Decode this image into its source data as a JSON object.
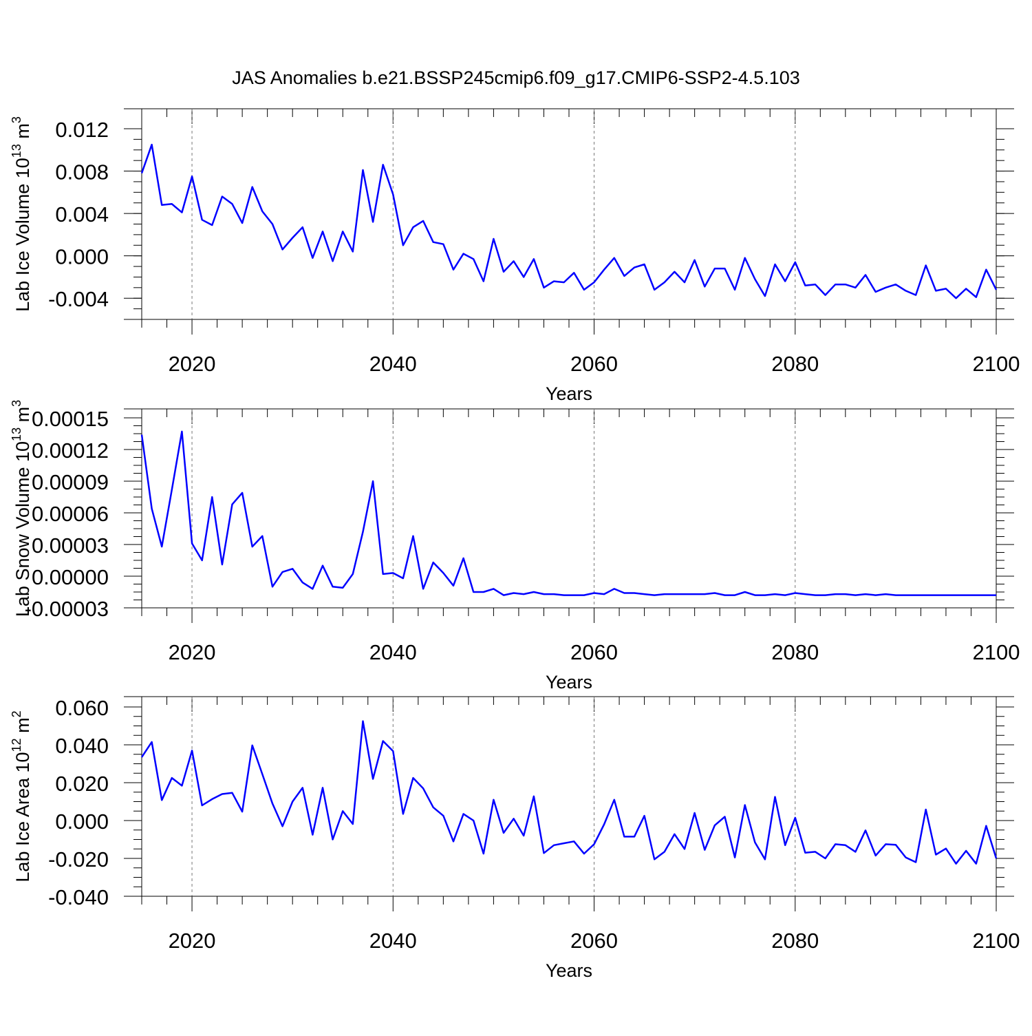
{
  "title": "JAS Anomalies b.e21.BSSP245cmip6.f09_g17.CMIP6-SSP2-4.5.103",
  "line_color": "#0000ff",
  "chart_data": [
    {
      "type": "line",
      "ylabel": "Lab Ice Volume 10",
      "ylabel_sup": "13",
      "ylabel_unit": " m",
      "ylabel_unit_sup": "3",
      "xlabel": "Years",
      "xlim": [
        2015,
        2100
      ],
      "ylim": [
        -0.006,
        0.012
      ],
      "yticks": [
        0.012,
        0.008,
        0.004,
        0.0,
        -0.004
      ],
      "yticklabels": [
        "0.012",
        "0.008",
        "0.004",
        "0.000",
        "-0.004"
      ],
      "xticks": [
        2020,
        2040,
        2060,
        2080,
        2100
      ],
      "xticklabels": [
        "2020",
        "2040",
        "2060",
        "2080",
        "2100"
      ],
      "x": [
        2015,
        2016,
        2017,
        2018,
        2019,
        2020,
        2021,
        2022,
        2023,
        2024,
        2025,
        2026,
        2027,
        2028,
        2029,
        2030,
        2031,
        2032,
        2033,
        2034,
        2035,
        2036,
        2037,
        2038,
        2039,
        2040,
        2041,
        2042,
        2043,
        2044,
        2045,
        2046,
        2047,
        2048,
        2049,
        2050,
        2051,
        2052,
        2053,
        2054,
        2055,
        2056,
        2057,
        2058,
        2059,
        2060,
        2061,
        2062,
        2063,
        2064,
        2065,
        2066,
        2067,
        2068,
        2069,
        2070,
        2071,
        2072,
        2073,
        2074,
        2075,
        2076,
        2077,
        2078,
        2079,
        2080,
        2081,
        2082,
        2083,
        2084,
        2085,
        2086,
        2087,
        2088,
        2089,
        2090,
        2091,
        2092,
        2093,
        2094,
        2095,
        2096,
        2097,
        2098,
        2099,
        2100
      ],
      "series": [
        {
          "values": [
            0.0078,
            0.0105,
            0.0048,
            0.0049,
            0.0041,
            0.0075,
            0.0034,
            0.0029,
            0.0056,
            0.0049,
            0.0031,
            0.0065,
            0.0042,
            0.003,
            0.0006,
            0.0017,
            0.0027,
            -0.0002,
            0.0023,
            -0.0005,
            0.0023,
            0.0004,
            0.0081,
            0.0032,
            0.0086,
            0.0058,
            0.001,
            0.0027,
            0.0033,
            0.0013,
            0.0011,
            -0.0013,
            0.0002,
            -0.0003,
            -0.0024,
            0.0016,
            -0.0015,
            -0.0005,
            -0.002,
            -0.0003,
            -0.003,
            -0.0024,
            -0.0025,
            -0.0016,
            -0.0032,
            -0.0025,
            -0.0013,
            -0.0002,
            -0.0019,
            -0.0011,
            -0.0008,
            -0.0032,
            -0.0025,
            -0.0015,
            -0.0025,
            -0.0004,
            -0.0029,
            -0.0012,
            -0.0012,
            -0.0032,
            -0.0002,
            -0.0022,
            -0.0038,
            -0.0008,
            -0.0024,
            -0.0006,
            -0.0028,
            -0.0027,
            -0.0037,
            -0.0027,
            -0.0027,
            -0.003,
            -0.0018,
            -0.0034,
            -0.003,
            -0.0027,
            -0.0033,
            -0.0037,
            -0.0009,
            -0.0033,
            -0.0031,
            -0.004,
            -0.0031,
            -0.0039,
            -0.0013,
            -0.0032
          ]
        }
      ]
    },
    {
      "type": "line",
      "ylabel": "Lab Snow Volume 10",
      "ylabel_sup": "13",
      "ylabel_unit": " m",
      "ylabel_unit_sup": "3",
      "xlabel": "Years",
      "xlim": [
        2015,
        2100
      ],
      "ylim": [
        -3e-05,
        0.00015
      ],
      "yticks": [
        0.00015,
        0.00012,
        9e-05,
        6e-05,
        3e-05,
        0.0,
        -3e-05
      ],
      "yticklabels": [
        "0.00015",
        "0.00012",
        "0.00009",
        "0.00006",
        "0.00003",
        "0.00000",
        "-0.00003"
      ],
      "xticks": [
        2020,
        2040,
        2060,
        2080,
        2100
      ],
      "xticklabels": [
        "2020",
        "2040",
        "2060",
        "2080",
        "2100"
      ],
      "x": [
        2015,
        2016,
        2017,
        2018,
        2019,
        2020,
        2021,
        2022,
        2023,
        2024,
        2025,
        2026,
        2027,
        2028,
        2029,
        2030,
        2031,
        2032,
        2033,
        2034,
        2035,
        2036,
        2037,
        2038,
        2039,
        2040,
        2041,
        2042,
        2043,
        2044,
        2045,
        2046,
        2047,
        2048,
        2049,
        2050,
        2051,
        2052,
        2053,
        2054,
        2055,
        2056,
        2057,
        2058,
        2059,
        2060,
        2061,
        2062,
        2063,
        2064,
        2065,
        2066,
        2067,
        2068,
        2069,
        2070,
        2071,
        2072,
        2073,
        2074,
        2075,
        2076,
        2077,
        2078,
        2079,
        2080,
        2081,
        2082,
        2083,
        2084,
        2085,
        2086,
        2087,
        2088,
        2089,
        2090,
        2091,
        2092,
        2093,
        2094,
        2095,
        2096,
        2097,
        2098,
        2099,
        2100
      ],
      "series": [
        {
          "values": [
            0.000134,
            6.4e-05,
            2.8e-05,
            8.2e-05,
            0.000137,
            3.1e-05,
            1.5e-05,
            7.5e-05,
            1.1e-05,
            6.8e-05,
            7.9e-05,
            2.8e-05,
            3.8e-05,
            -1e-05,
            4e-06,
            7e-06,
            -6e-06,
            -1.2e-05,
            1e-05,
            -1e-05,
            -1.1e-05,
            2e-06,
            4.2e-05,
            9e-05,
            2e-06,
            3e-06,
            -2e-06,
            3.8e-05,
            -1.2e-05,
            1.3e-05,
            3e-06,
            -9e-06,
            1.7e-05,
            -1.5e-05,
            -1.5e-05,
            -1.2e-05,
            -1.8e-05,
            -1.6e-05,
            -1.7e-05,
            -1.5e-05,
            -1.7e-05,
            -1.7e-05,
            -1.8e-05,
            -1.8e-05,
            -1.8e-05,
            -1.6e-05,
            -1.7e-05,
            -1.2e-05,
            -1.6e-05,
            -1.6e-05,
            -1.7e-05,
            -1.8e-05,
            -1.7e-05,
            -1.7e-05,
            -1.7e-05,
            -1.7e-05,
            -1.7e-05,
            -1.6e-05,
            -1.8e-05,
            -1.8e-05,
            -1.5e-05,
            -1.8e-05,
            -1.8e-05,
            -1.7e-05,
            -1.8e-05,
            -1.6e-05,
            -1.7e-05,
            -1.8e-05,
            -1.8e-05,
            -1.7e-05,
            -1.7e-05,
            -1.8e-05,
            -1.7e-05,
            -1.8e-05,
            -1.7e-05,
            -1.8e-05,
            -1.8e-05,
            -1.8e-05,
            -1.8e-05,
            -1.8e-05,
            -1.8e-05,
            -1.8e-05,
            -1.8e-05,
            -1.8e-05,
            -1.8e-05,
            -1.8e-05
          ]
        }
      ]
    },
    {
      "type": "line",
      "ylabel": "Lab Ice Area 10",
      "ylabel_sup": "12",
      "ylabel_unit": " m",
      "ylabel_unit_sup": "2",
      "xlabel": "Years",
      "xlim": [
        2015,
        2100
      ],
      "ylim": [
        -0.04,
        0.06
      ],
      "yticks": [
        0.06,
        0.04,
        0.02,
        0.0,
        -0.02,
        -0.04
      ],
      "yticklabels": [
        "0.060",
        "0.040",
        "0.020",
        "0.000",
        "-0.020",
        "-0.040"
      ],
      "xticks": [
        2020,
        2040,
        2060,
        2080,
        2100
      ],
      "xticklabels": [
        "2020",
        "2040",
        "2060",
        "2080",
        "2100"
      ],
      "x": [
        2015,
        2016,
        2017,
        2018,
        2019,
        2020,
        2021,
        2022,
        2023,
        2024,
        2025,
        2026,
        2027,
        2028,
        2029,
        2030,
        2031,
        2032,
        2033,
        2034,
        2035,
        2036,
        2037,
        2038,
        2039,
        2040,
        2041,
        2042,
        2043,
        2044,
        2045,
        2046,
        2047,
        2048,
        2049,
        2050,
        2051,
        2052,
        2053,
        2054,
        2055,
        2056,
        2057,
        2058,
        2059,
        2060,
        2061,
        2062,
        2063,
        2064,
        2065,
        2066,
        2067,
        2068,
        2069,
        2070,
        2071,
        2072,
        2073,
        2074,
        2075,
        2076,
        2077,
        2078,
        2079,
        2080,
        2081,
        2082,
        2083,
        2084,
        2085,
        2086,
        2087,
        2088,
        2089,
        2090,
        2091,
        2092,
        2093,
        2094,
        2095,
        2096,
        2097,
        2098,
        2099,
        2100
      ],
      "series": [
        {
          "values": [
            0.0335,
            0.0415,
            0.0108,
            0.0225,
            0.0184,
            0.037,
            0.008,
            0.0113,
            0.014,
            0.0146,
            0.0047,
            0.0397,
            0.0245,
            0.009,
            -0.003,
            0.01,
            0.0173,
            -0.0075,
            0.0173,
            -0.01,
            0.005,
            -0.0018,
            0.0525,
            0.022,
            0.042,
            0.0367,
            0.0035,
            0.0225,
            0.017,
            0.007,
            0.0025,
            -0.011,
            0.0035,
            -0.0,
            -0.0175,
            0.011,
            -0.0065,
            0.001,
            -0.008,
            0.0128,
            -0.0172,
            -0.013,
            -0.012,
            -0.011,
            -0.0175,
            -0.0125,
            -0.002,
            0.011,
            -0.0085,
            -0.0085,
            0.0025,
            -0.0205,
            -0.0165,
            -0.0072,
            -0.015,
            0.004,
            -0.0155,
            -0.0025,
            0.002,
            -0.0195,
            0.0082,
            -0.0115,
            -0.0205,
            0.0125,
            -0.013,
            0.0015,
            -0.017,
            -0.0165,
            -0.02,
            -0.0125,
            -0.013,
            -0.0165,
            -0.0052,
            -0.0185,
            -0.0125,
            -0.0128,
            -0.0195,
            -0.022,
            0.0058,
            -0.018,
            -0.0148,
            -0.0228,
            -0.016,
            -0.0228,
            -0.0028,
            -0.02
          ]
        }
      ]
    }
  ]
}
